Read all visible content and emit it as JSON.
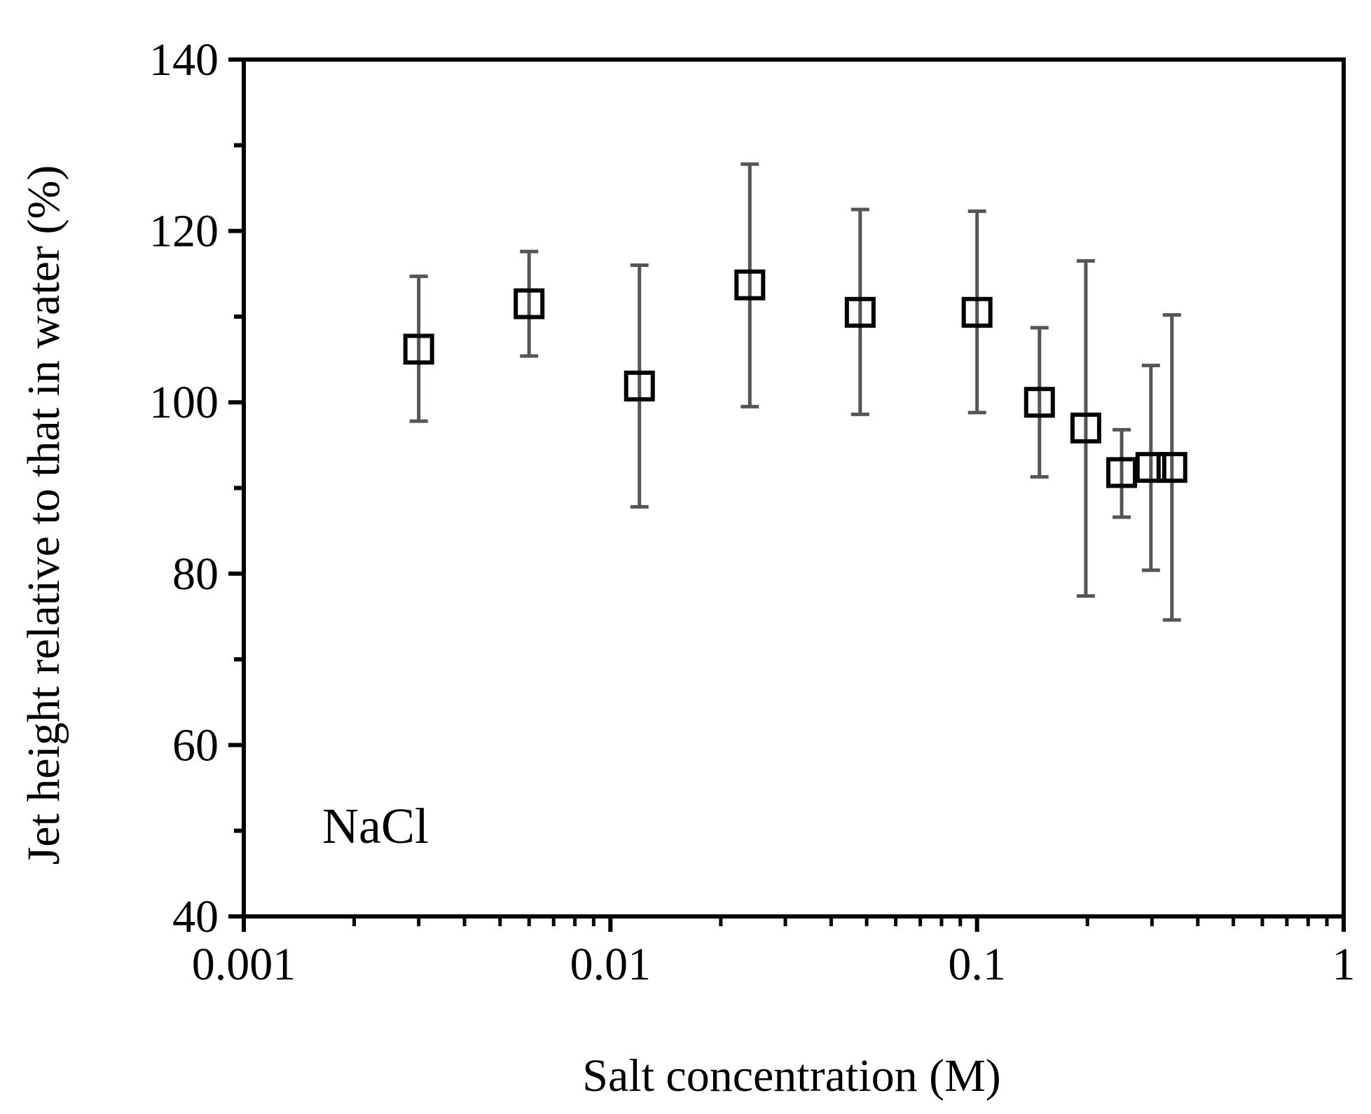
{
  "chart_data": {
    "type": "scatter",
    "xscale": "log",
    "xlim": [
      0.001,
      1
    ],
    "ylim": [
      40,
      140
    ],
    "xlabel": "Salt concentration (M)",
    "ylabel": "Jet height relative to that in water (%)",
    "x_tick_labels": [
      "0.001",
      "0.01",
      "0.1",
      "1"
    ],
    "x_ticks": [
      0.001,
      0.01,
      0.1,
      1
    ],
    "y_tick_labels": [
      "40",
      "60",
      "80",
      "100",
      "120",
      "140"
    ],
    "y_ticks": [
      40,
      60,
      80,
      100,
      120,
      140
    ],
    "annotation": "NaCl",
    "grid": false,
    "marker": "open-square",
    "colors": {
      "marker": "#000000",
      "error_bar": "#555555",
      "axis": "#000000"
    },
    "points": [
      {
        "x": 0.003,
        "y": 106.2,
        "y_low": 97.8,
        "y_high": 114.7
      },
      {
        "x": 0.006,
        "y": 111.5,
        "y_low": 105.4,
        "y_high": 117.6
      },
      {
        "x": 0.012,
        "y": 101.9,
        "y_low": 87.8,
        "y_high": 116.0
      },
      {
        "x": 0.024,
        "y": 113.7,
        "y_low": 99.5,
        "y_high": 127.8
      },
      {
        "x": 0.048,
        "y": 110.5,
        "y_low": 98.6,
        "y_high": 122.5
      },
      {
        "x": 0.1,
        "y": 110.5,
        "y_low": 98.8,
        "y_high": 122.3
      },
      {
        "x": 0.148,
        "y": 100.0,
        "y_low": 91.3,
        "y_high": 108.7
      },
      {
        "x": 0.198,
        "y": 97.0,
        "y_low": 77.4,
        "y_high": 116.5
      },
      {
        "x": 0.248,
        "y": 91.8,
        "y_low": 86.6,
        "y_high": 96.8
      },
      {
        "x": 0.298,
        "y": 92.4,
        "y_low": 80.4,
        "y_high": 104.3
      },
      {
        "x": 0.34,
        "y": 92.4,
        "y_low": 74.6,
        "y_high": 110.2
      }
    ]
  }
}
